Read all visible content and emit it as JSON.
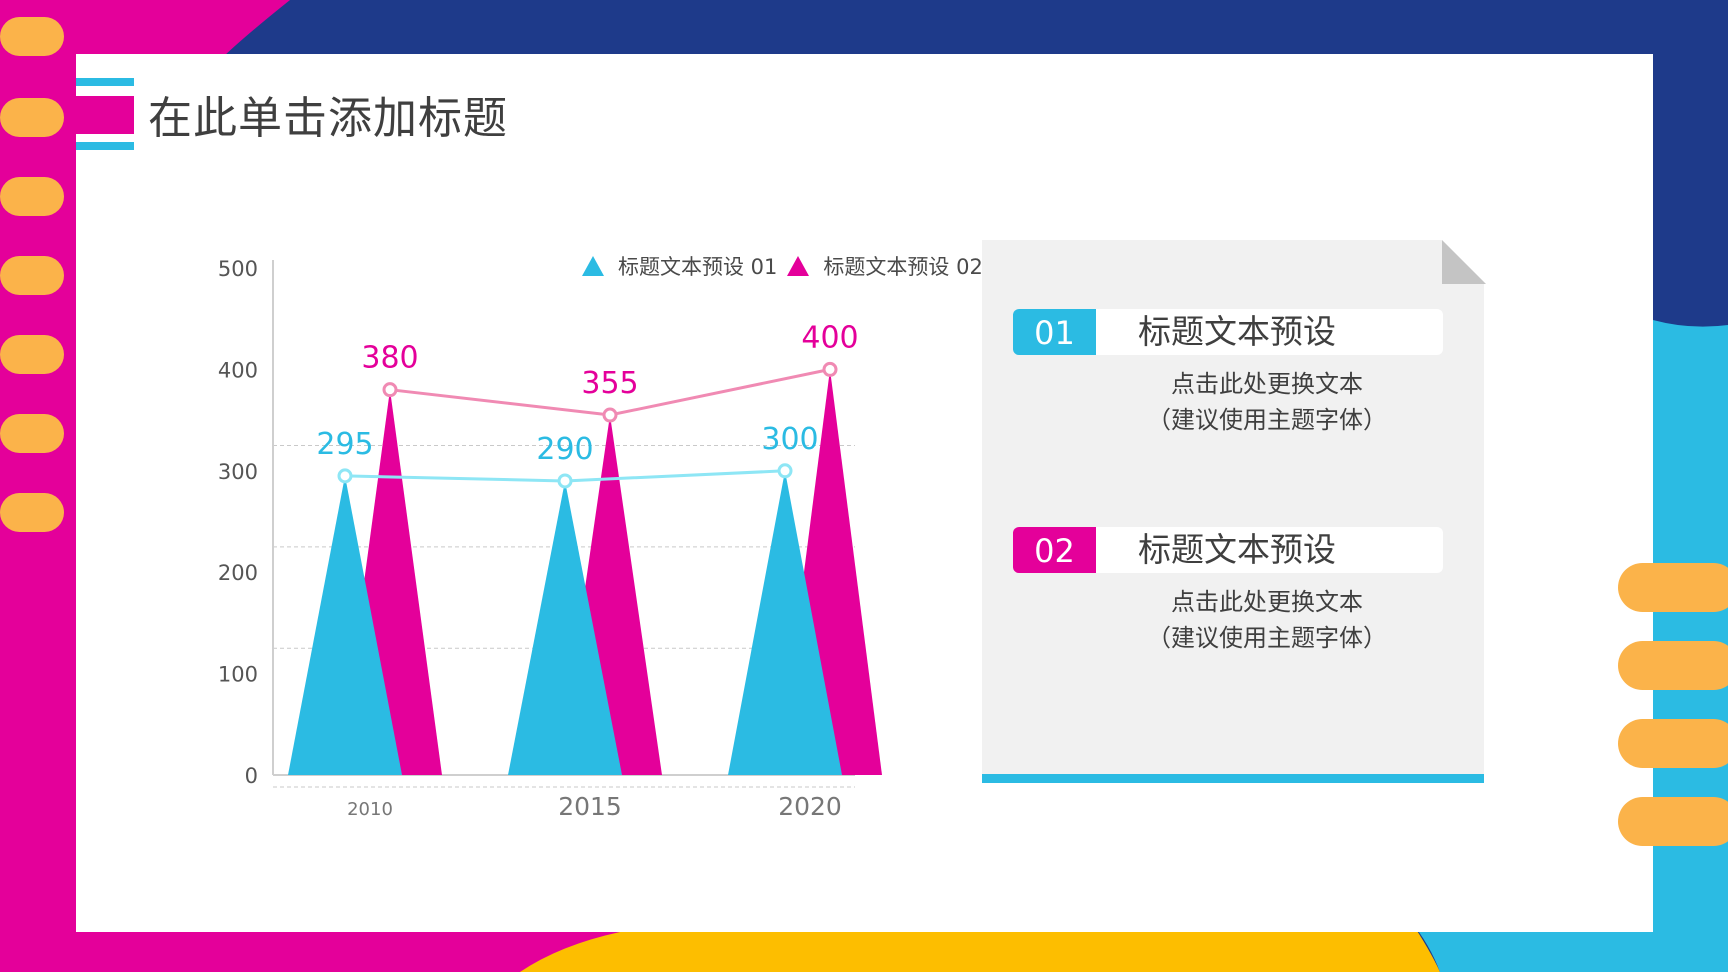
{
  "page_title": "在此单击添加标题",
  "colors": {
    "magenta": "#e4009a",
    "cyan": "#2bbbe3",
    "navy": "#1e3a8a",
    "yellow": "#fbb34a",
    "gold": "#fdbe00",
    "light_cyan_line": "#8ee6f5",
    "pink_line": "#f08ab3"
  },
  "legend": [
    {
      "label": "标题文本预设 01",
      "color": "#2bbbe3"
    },
    {
      "label": "标题文本预设 02",
      "color": "#e4009a"
    }
  ],
  "chart_data": {
    "type": "bar",
    "categories": [
      "2010",
      "2015",
      "2020"
    ],
    "series": [
      {
        "name": "标题文本预设 01",
        "values": [
          295,
          290,
          300
        ],
        "color": "#2bbbe3"
      },
      {
        "name": "标题文本预设 02",
        "values": [
          380,
          355,
          400
        ],
        "color": "#e4009a"
      }
    ],
    "data_labels": [
      [
        "295",
        "290",
        "300"
      ],
      [
        "380",
        "355",
        "400"
      ]
    ],
    "ylim": [
      0,
      500
    ],
    "yticks": [
      "0",
      "100",
      "200",
      "300",
      "400",
      "500"
    ],
    "grid": true,
    "legend_position": "top",
    "overlay_lines": true,
    "title": "",
    "xlabel": "",
    "ylabel": ""
  },
  "cards": [
    {
      "num": "01",
      "title": "标题文本预设",
      "line1": "点击此处更换文本",
      "line2": "（建议使用主题字体）",
      "color": "#2bbbe3"
    },
    {
      "num": "02",
      "title": "标题文本预设",
      "line1": "点击此处更换文本",
      "line2": "（建议使用主题字体）",
      "color": "#e4009a"
    }
  ]
}
